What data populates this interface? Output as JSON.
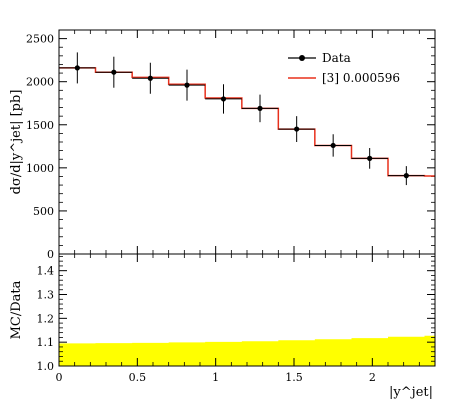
{
  "legend": {
    "data_label": "Data",
    "mc_label": "[3] 0.000596",
    "placement": "top-right"
  },
  "colors": {
    "data": "#000000",
    "mc": "#e8301c",
    "band": "#ffff00"
  },
  "chart_data": [
    {
      "type": "line",
      "panel": "main",
      "ylabel": "dσ/d|y^jet| [pb]",
      "xlim": [
        0,
        2.4
      ],
      "ylim": [
        0,
        2600
      ],
      "yticks": [
        0,
        500,
        1000,
        1500,
        2000,
        2500
      ],
      "ytick_labels": [
        "0",
        "500",
        "1000",
        "1500",
        "2000",
        "2500"
      ],
      "bin_edges": [
        0,
        0.233,
        0.467,
        0.7,
        0.933,
        1.167,
        1.4,
        1.633,
        1.867,
        2.1,
        2.333,
        2.4
      ],
      "series": [
        {
          "name": "Data",
          "x": [
            0.117,
            0.35,
            0.583,
            0.817,
            1.05,
            1.283,
            1.517,
            1.75,
            1.983,
            2.217
          ],
          "y": [
            2160,
            2110,
            2040,
            1960,
            1800,
            1690,
            1450,
            1260,
            1110,
            910
          ],
          "yerr": [
            180,
            180,
            180,
            180,
            170,
            160,
            150,
            130,
            120,
            110
          ]
        },
        {
          "name": "[3] 0.000596",
          "values": [
            2160,
            2110,
            2050,
            1970,
            1810,
            1690,
            1450,
            1260,
            1110,
            910,
            905
          ]
        }
      ]
    },
    {
      "type": "area",
      "panel": "ratio",
      "ylabel": "MC/Data",
      "xlabel": "|y^jet|",
      "xlim": [
        0,
        2.4
      ],
      "ylim": [
        1.0,
        1.47
      ],
      "xticks": [
        0,
        0.5,
        1,
        1.5,
        2
      ],
      "xtick_labels": [
        "0",
        "0.5",
        "1",
        "1.5",
        "2"
      ],
      "yticks": [
        1.0,
        1.1,
        1.2,
        1.3,
        1.4
      ],
      "ytick_labels": [
        "1.0",
        "1.1",
        "1.2",
        "1.3",
        "1.4"
      ],
      "bin_edges": [
        0,
        0.233,
        0.467,
        0.7,
        0.933,
        1.167,
        1.4,
        1.633,
        1.867,
        2.1,
        2.333,
        2.4
      ],
      "band_upper": [
        1.095,
        1.096,
        1.097,
        1.099,
        1.101,
        1.104,
        1.108,
        1.112,
        1.117,
        1.123,
        1.127
      ],
      "band_lower": [
        1.0,
        1.0,
        1.0,
        1.0,
        1.0,
        1.0,
        1.0,
        1.0,
        1.0,
        1.0,
        1.0
      ]
    }
  ]
}
